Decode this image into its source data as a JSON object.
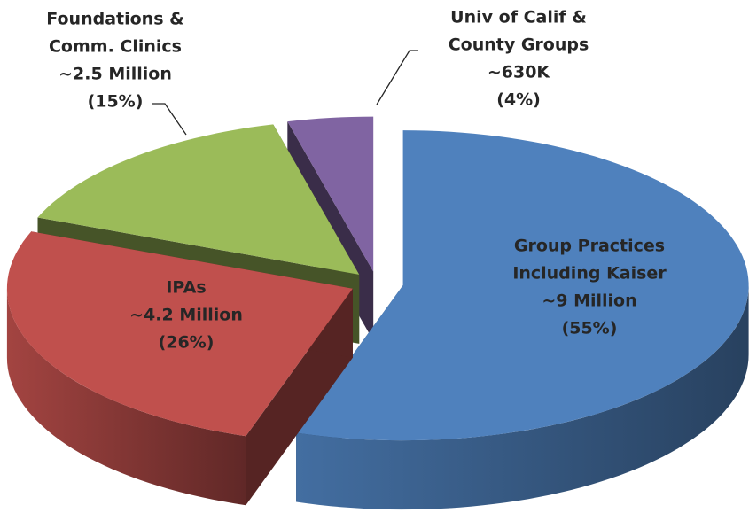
{
  "chart_data": {
    "type": "pie3d",
    "categories": [
      [
        "Group Practices",
        "Including Kaiser"
      ],
      [
        "IPAs"
      ],
      [
        "Foundations &",
        "Comm. Clinics"
      ],
      [
        "Univ of Calif &",
        "County Groups"
      ]
    ],
    "amounts": [
      "~9 Million",
      "~4.2 Million",
      "~2.5 Million",
      "~630K"
    ],
    "values": [
      55,
      26,
      15,
      4
    ],
    "value_labels": [
      "(55%)",
      "(26%)",
      "(15%)",
      "(4%)"
    ],
    "colors": [
      "#4f81bd",
      "#c0504d",
      "#9bbb59",
      "#8064a2"
    ]
  }
}
